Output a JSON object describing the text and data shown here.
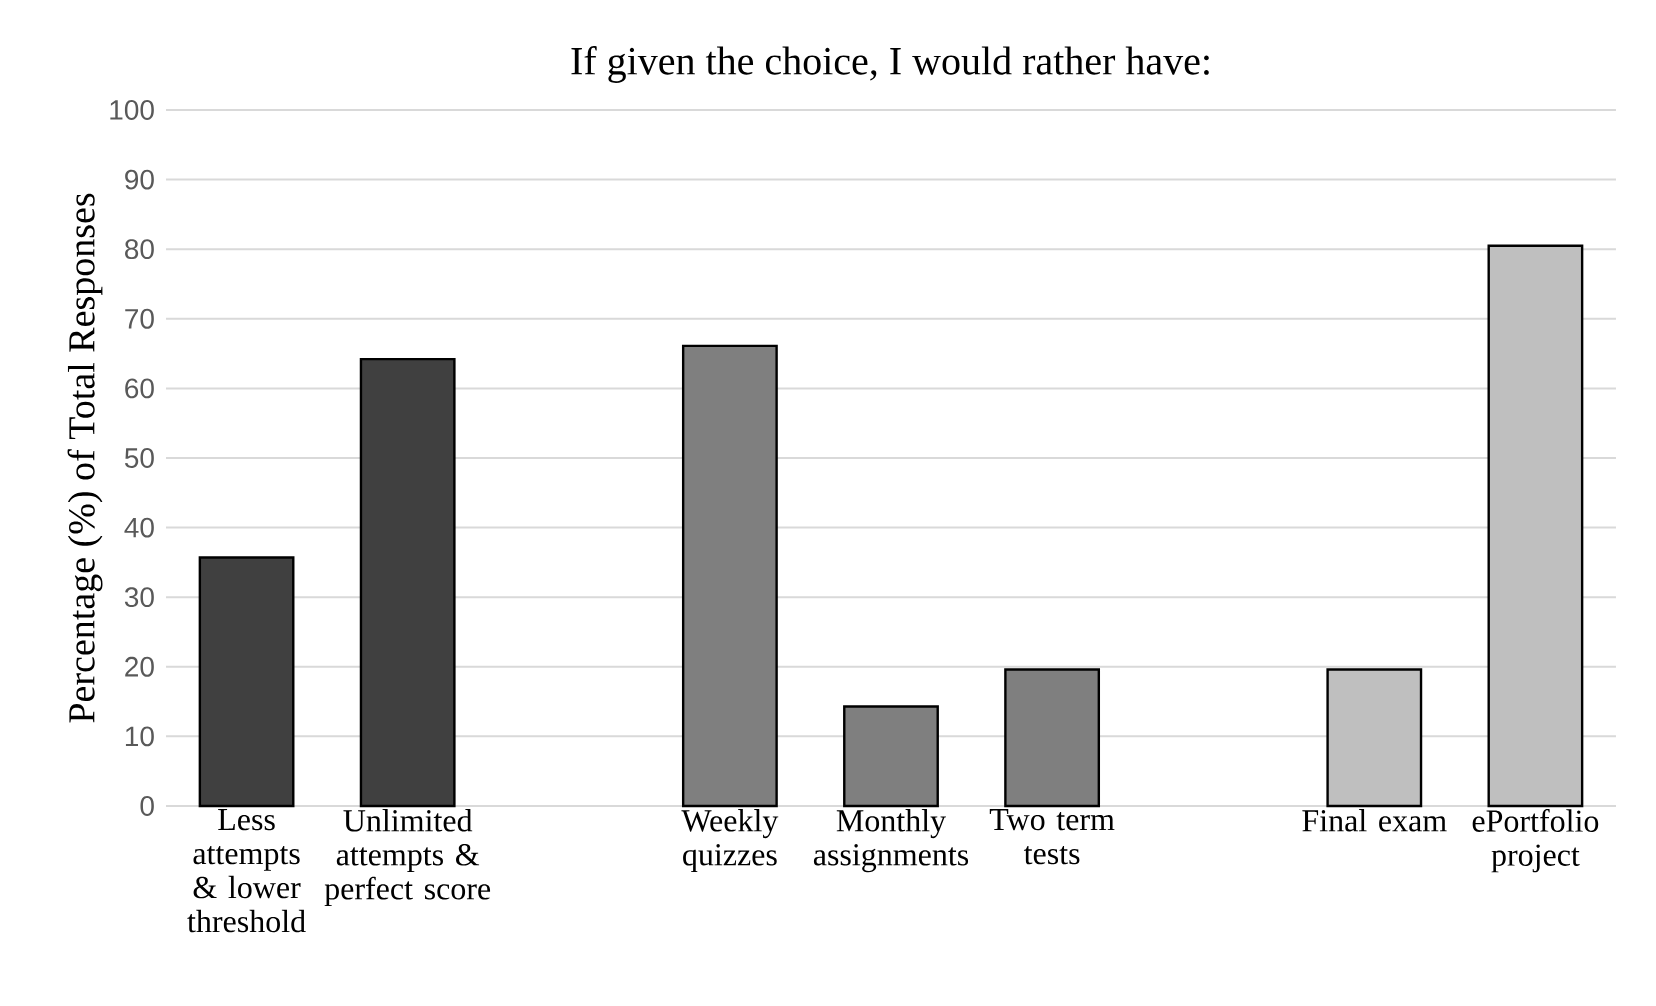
{
  "chart_data": {
    "type": "bar",
    "title": "If given the choice, I would rather have:",
    "ylabel": "Percentage (%) of Total Responses",
    "categories": [
      "Less attempts & lower threshold",
      "Unlimited attempts & perfect score",
      null,
      "Weekly quizzes",
      "Monthly assignments",
      "Two term tests",
      null,
      "Final exam",
      "ePortfolio project"
    ],
    "values": [
      35.7,
      64.2,
      null,
      66.1,
      14.3,
      19.6,
      null,
      19.6,
      80.5
    ],
    "colors": [
      "#404040",
      "#404040",
      null,
      "#7f7f7f",
      "#7f7f7f",
      "#7f7f7f",
      null,
      "#bfbfbf",
      "#bfbfbf"
    ],
    "ylim": [
      0,
      100
    ],
    "yticks": [
      0,
      10,
      20,
      30,
      40,
      50,
      60,
      70,
      80,
      90,
      100
    ],
    "grid": "y"
  }
}
